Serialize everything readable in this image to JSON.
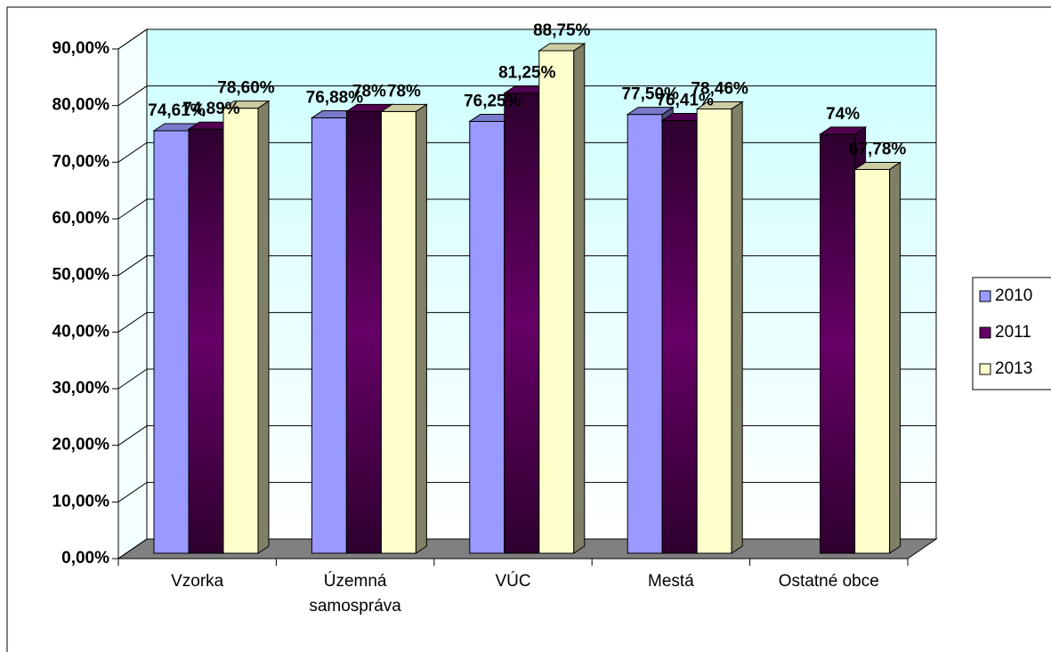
{
  "chart_data": {
    "type": "bar3d",
    "categories": [
      "Vzorka",
      "Územná samospráva",
      "VÚC",
      "Mestá",
      "Ostatné obce"
    ],
    "series": [
      {
        "name": "2010",
        "color": "#9999ff",
        "values": [
          74.61,
          76.88,
          76.25,
          77.5,
          null
        ],
        "value_labels": [
          "74,61%",
          "76,88%",
          "76,25%",
          "77,50%",
          null
        ]
      },
      {
        "name": "2011",
        "color": "#660066",
        "values": [
          74.89,
          78,
          81.25,
          76.41,
          74
        ],
        "value_labels": [
          "74,89%",
          "78%",
          "81,25%",
          "76,41%",
          "74%"
        ]
      },
      {
        "name": "2013",
        "color": "#ffffcc",
        "values": [
          78.6,
          78,
          88.75,
          78.46,
          67.78
        ],
        "value_labels": [
          "78,60%",
          "78%",
          "88,75%",
          "78,46%",
          "67,78%"
        ]
      }
    ],
    "ylim": [
      0,
      90
    ],
    "yticks": [
      {
        "value": 0,
        "label": "0,00%"
      },
      {
        "value": 10,
        "label": "10,00%"
      },
      {
        "value": 20,
        "label": "20,00%"
      },
      {
        "value": 30,
        "label": "30,00%"
      },
      {
        "value": 40,
        "label": "40,00%"
      },
      {
        "value": 50,
        "label": "50,00%"
      },
      {
        "value": 60,
        "label": "60,00%"
      },
      {
        "value": 70,
        "label": "70,00%"
      },
      {
        "value": 80,
        "label": "80,00%"
      },
      {
        "value": 90,
        "label": "90,00%"
      }
    ],
    "grid": true,
    "legend": "right"
  }
}
